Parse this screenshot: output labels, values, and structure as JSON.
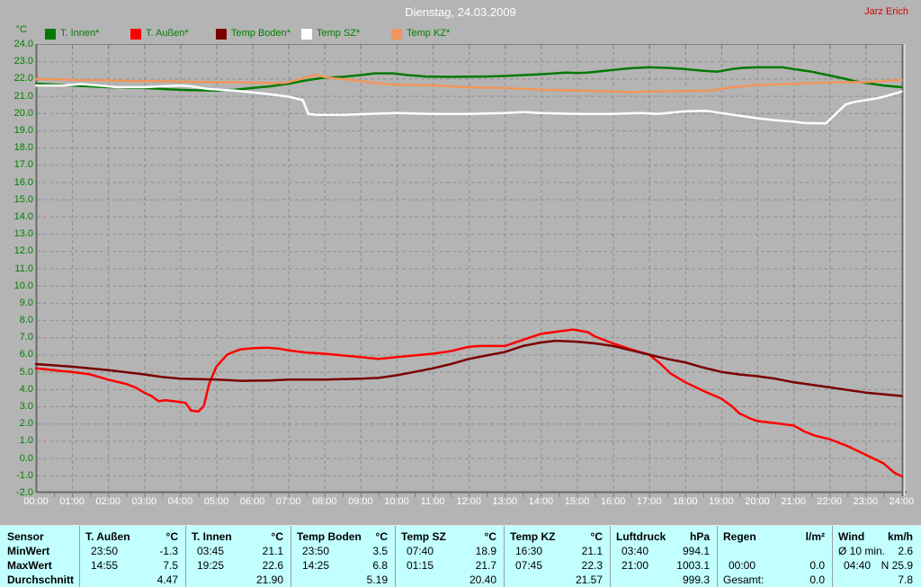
{
  "header": {
    "title": "Dienstag, 24.03.2009",
    "author": "Jarz Erich"
  },
  "colors": {
    "background": "#b4b4b4",
    "grid": "#8f8f8f",
    "axis_dark": "#6a6a6a",
    "axis_light": "#e0e0e0",
    "axis_text_green": "#008000",
    "axis_text_white": "#ffffff",
    "author_red": "#dd0000",
    "table_background": "#c2ffff",
    "t_innen": "#007a00",
    "t_aussen": "#ff0000",
    "temp_boden": "#7a0000",
    "temp_sz": "#ffffff",
    "temp_kz": "#f2955c"
  },
  "chart_data": {
    "type": "line",
    "title": "Dienstag, 24.03.2009",
    "xlabel": "",
    "ylabel": "°C",
    "ylim": [
      -2,
      24
    ],
    "y_tick_step": 1,
    "grid": "dashed",
    "legend_position": "top",
    "x_ticks": [
      "00:00",
      "01:00",
      "02:00",
      "03:00",
      "04:00",
      "05:00",
      "06:00",
      "07:00",
      "08:00",
      "09:00",
      "10:00",
      "11:00",
      "12:00",
      "13:00",
      "14:00",
      "15:00",
      "16:00",
      "17:00",
      "18:00",
      "19:00",
      "20:00",
      "21:00",
      "22:00",
      "23:00",
      "24:00"
    ],
    "series": [
      {
        "key": "t-innen",
        "name": "T. Innen*",
        "color": "#007a00",
        "width": 2.5,
        "points": [
          [
            0,
            21.7
          ],
          [
            0.5,
            21.65
          ],
          [
            1,
            21.6
          ],
          [
            1.5,
            21.55
          ],
          [
            2,
            21.5
          ],
          [
            2.5,
            21.47
          ],
          [
            3,
            21.45
          ],
          [
            3.5,
            21.4
          ],
          [
            3.75,
            21.37
          ],
          [
            4.25,
            21.33
          ],
          [
            5,
            21.3
          ],
          [
            5.5,
            21.35
          ],
          [
            6,
            21.45
          ],
          [
            6.5,
            21.55
          ],
          [
            7,
            21.7
          ],
          [
            7.5,
            21.9
          ],
          [
            8,
            22.05
          ],
          [
            8.5,
            22.1
          ],
          [
            9,
            22.2
          ],
          [
            9.4,
            22.3
          ],
          [
            9.9,
            22.3
          ],
          [
            10.3,
            22.2
          ],
          [
            10.8,
            22.12
          ],
          [
            11.5,
            22.1
          ],
          [
            12.5,
            22.12
          ],
          [
            13,
            22.15
          ],
          [
            14,
            22.25
          ],
          [
            14.7,
            22.35
          ],
          [
            15,
            22.32
          ],
          [
            15.3,
            22.35
          ],
          [
            16,
            22.5
          ],
          [
            16.5,
            22.6
          ],
          [
            17,
            22.65
          ],
          [
            17.5,
            22.62
          ],
          [
            18,
            22.55
          ],
          [
            18.5,
            22.45
          ],
          [
            18.9,
            22.4
          ],
          [
            19.3,
            22.55
          ],
          [
            19.6,
            22.62
          ],
          [
            20,
            22.65
          ],
          [
            20.7,
            22.65
          ],
          [
            21,
            22.55
          ],
          [
            21.5,
            22.4
          ],
          [
            22,
            22.18
          ],
          [
            22.4,
            22.0
          ],
          [
            22.7,
            21.85
          ],
          [
            23,
            21.75
          ],
          [
            23.5,
            21.6
          ],
          [
            24,
            21.5
          ]
        ]
      },
      {
        "key": "t-aussen",
        "name": "T. Außen*",
        "color": "#ff0000",
        "width": 2.5,
        "points": [
          [
            0,
            5.2
          ],
          [
            0.4,
            5.12
          ],
          [
            0.7,
            5.05
          ],
          [
            1,
            5.0
          ],
          [
            1.5,
            4.85
          ],
          [
            2,
            4.55
          ],
          [
            2.5,
            4.3
          ],
          [
            2.75,
            4.1
          ],
          [
            3,
            3.8
          ],
          [
            3.2,
            3.6
          ],
          [
            3.4,
            3.3
          ],
          [
            3.6,
            3.35
          ],
          [
            3.8,
            3.3
          ],
          [
            4,
            3.25
          ],
          [
            4.15,
            3.2
          ],
          [
            4.3,
            2.75
          ],
          [
            4.5,
            2.7
          ],
          [
            4.65,
            3.0
          ],
          [
            4.8,
            4.3
          ],
          [
            5,
            5.3
          ],
          [
            5.3,
            6.0
          ],
          [
            5.65,
            6.3
          ],
          [
            6,
            6.37
          ],
          [
            6.4,
            6.4
          ],
          [
            6.7,
            6.35
          ],
          [
            7,
            6.25
          ],
          [
            7.5,
            6.12
          ],
          [
            8,
            6.05
          ],
          [
            8.5,
            5.95
          ],
          [
            9,
            5.85
          ],
          [
            9.5,
            5.75
          ],
          [
            10,
            5.85
          ],
          [
            10.5,
            5.95
          ],
          [
            11,
            6.05
          ],
          [
            11.5,
            6.2
          ],
          [
            12,
            6.45
          ],
          [
            12.3,
            6.5
          ],
          [
            13,
            6.5
          ],
          [
            13.5,
            6.85
          ],
          [
            14,
            7.2
          ],
          [
            14.5,
            7.35
          ],
          [
            14.9,
            7.45
          ],
          [
            15.3,
            7.3
          ],
          [
            15.5,
            7.05
          ],
          [
            16,
            6.65
          ],
          [
            16.5,
            6.3
          ],
          [
            17,
            6.0
          ],
          [
            17.3,
            5.5
          ],
          [
            17.6,
            4.9
          ],
          [
            18,
            4.4
          ],
          [
            18.5,
            3.9
          ],
          [
            19,
            3.45
          ],
          [
            19.3,
            3.0
          ],
          [
            19.5,
            2.6
          ],
          [
            19.8,
            2.3
          ],
          [
            20,
            2.15
          ],
          [
            20.4,
            2.05
          ],
          [
            21,
            1.9
          ],
          [
            21.3,
            1.55
          ],
          [
            21.6,
            1.3
          ],
          [
            22,
            1.1
          ],
          [
            22.5,
            0.7
          ],
          [
            23,
            0.2
          ],
          [
            23.5,
            -0.3
          ],
          [
            23.8,
            -0.85
          ],
          [
            24,
            -1.05
          ]
        ]
      },
      {
        "key": "temp-boden",
        "name": "Temp Boden*",
        "color": "#7a0000",
        "width": 2.5,
        "points": [
          [
            0,
            5.45
          ],
          [
            1,
            5.3
          ],
          [
            2,
            5.1
          ],
          [
            3,
            4.85
          ],
          [
            3.5,
            4.7
          ],
          [
            4,
            4.6
          ],
          [
            5,
            4.55
          ],
          [
            5.7,
            4.48
          ],
          [
            6.5,
            4.5
          ],
          [
            7,
            4.55
          ],
          [
            8,
            4.55
          ],
          [
            9,
            4.6
          ],
          [
            9.5,
            4.65
          ],
          [
            10,
            4.8
          ],
          [
            10.5,
            5.0
          ],
          [
            11,
            5.2
          ],
          [
            11.5,
            5.45
          ],
          [
            12,
            5.75
          ],
          [
            12.5,
            5.95
          ],
          [
            13,
            6.15
          ],
          [
            13.5,
            6.5
          ],
          [
            14,
            6.7
          ],
          [
            14.4,
            6.8
          ],
          [
            15,
            6.75
          ],
          [
            15.5,
            6.65
          ],
          [
            16,
            6.5
          ],
          [
            16.5,
            6.25
          ],
          [
            17,
            6.0
          ],
          [
            17.5,
            5.75
          ],
          [
            18,
            5.55
          ],
          [
            18.5,
            5.25
          ],
          [
            19,
            5.0
          ],
          [
            19.5,
            4.85
          ],
          [
            20,
            4.75
          ],
          [
            20.5,
            4.6
          ],
          [
            21,
            4.4
          ],
          [
            21.5,
            4.25
          ],
          [
            22,
            4.1
          ],
          [
            22.5,
            3.95
          ],
          [
            23,
            3.8
          ],
          [
            23.5,
            3.7
          ],
          [
            24,
            3.6
          ]
        ]
      },
      {
        "key": "temp-sz",
        "name": "Temp SZ*",
        "color": "#ffffff",
        "width": 2.5,
        "points": [
          [
            0,
            21.6
          ],
          [
            0.75,
            21.6
          ],
          [
            1.25,
            21.68
          ],
          [
            1.75,
            21.6
          ],
          [
            2.25,
            21.5
          ],
          [
            3,
            21.5
          ],
          [
            3.5,
            21.55
          ],
          [
            4,
            21.6
          ],
          [
            4.3,
            21.55
          ],
          [
            4.75,
            21.4
          ],
          [
            5.5,
            21.3
          ],
          [
            6.25,
            21.15
          ],
          [
            7,
            20.95
          ],
          [
            7.4,
            20.75
          ],
          [
            7.55,
            19.95
          ],
          [
            7.8,
            19.9
          ],
          [
            8.5,
            19.9
          ],
          [
            9.2,
            19.95
          ],
          [
            10,
            20.0
          ],
          [
            11,
            19.95
          ],
          [
            12,
            19.95
          ],
          [
            13,
            20.0
          ],
          [
            13.5,
            20.05
          ],
          [
            14,
            20.0
          ],
          [
            15,
            19.95
          ],
          [
            16,
            19.95
          ],
          [
            16.75,
            20.0
          ],
          [
            17.25,
            19.95
          ],
          [
            18,
            20.1
          ],
          [
            18.6,
            20.13
          ],
          [
            19,
            20.0
          ],
          [
            19.5,
            19.85
          ],
          [
            20,
            19.7
          ],
          [
            20.5,
            19.58
          ],
          [
            21,
            19.5
          ],
          [
            21.3,
            19.42
          ],
          [
            21.9,
            19.4
          ],
          [
            22.05,
            19.7
          ],
          [
            22.2,
            20.0
          ],
          [
            22.45,
            20.5
          ],
          [
            22.7,
            20.65
          ],
          [
            23,
            20.75
          ],
          [
            23.3,
            20.85
          ],
          [
            23.6,
            21.0
          ],
          [
            24,
            21.25
          ]
        ]
      },
      {
        "key": "temp-kz",
        "name": "Temp KZ*",
        "color": "#f2955c",
        "width": 2.5,
        "points": [
          [
            0,
            21.97
          ],
          [
            0.7,
            21.95
          ],
          [
            1.2,
            21.9
          ],
          [
            2,
            21.9
          ],
          [
            2.6,
            21.85
          ],
          [
            3.5,
            21.85
          ],
          [
            4.5,
            21.8
          ],
          [
            5.5,
            21.78
          ],
          [
            6.4,
            21.75
          ],
          [
            6.9,
            21.75
          ],
          [
            7.3,
            21.95
          ],
          [
            7.6,
            22.15
          ],
          [
            7.8,
            22.2
          ],
          [
            8,
            22.1
          ],
          [
            8.3,
            22.0
          ],
          [
            8.6,
            21.95
          ],
          [
            9,
            21.85
          ],
          [
            9.6,
            21.7
          ],
          [
            10,
            21.65
          ],
          [
            11,
            21.6
          ],
          [
            12,
            21.5
          ],
          [
            13,
            21.45
          ],
          [
            14,
            21.35
          ],
          [
            15,
            21.3
          ],
          [
            16,
            21.25
          ],
          [
            16.5,
            21.2
          ],
          [
            17,
            21.25
          ],
          [
            18,
            21.28
          ],
          [
            18.7,
            21.3
          ],
          [
            19.3,
            21.5
          ],
          [
            20,
            21.63
          ],
          [
            21,
            21.7
          ],
          [
            22,
            21.77
          ],
          [
            23,
            21.8
          ],
          [
            23.5,
            21.85
          ],
          [
            24,
            21.92
          ]
        ]
      }
    ]
  },
  "table": {
    "row_labels": [
      "Sensor",
      "MinWert",
      "MaxWert",
      "Durchschnitt"
    ],
    "columns": [
      {
        "name": "T. Außen",
        "unit": "°C",
        "rows": [
          [
            "23:50",
            "-1.3"
          ],
          [
            "14:55",
            "7.5"
          ],
          [
            "",
            "4.47"
          ]
        ]
      },
      {
        "name": "T. Innen",
        "unit": "°C",
        "rows": [
          [
            "03:45",
            "21.1"
          ],
          [
            "19:25",
            "22.6"
          ],
          [
            "",
            "21.90"
          ]
        ]
      },
      {
        "name": "Temp Boden",
        "unit": "°C",
        "rows": [
          [
            "23:50",
            "3.5"
          ],
          [
            "14:25",
            "6.8"
          ],
          [
            "",
            "5.19"
          ]
        ]
      },
      {
        "name": "Temp SZ",
        "unit": "°C",
        "rows": [
          [
            "07:40",
            "18.9"
          ],
          [
            "01:15",
            "21.7"
          ],
          [
            "",
            "20.40"
          ]
        ]
      },
      {
        "name": "Temp KZ",
        "unit": "°C",
        "rows": [
          [
            "16:30",
            "21.1"
          ],
          [
            "07:45",
            "22.3"
          ],
          [
            "",
            "21.57"
          ]
        ]
      },
      {
        "name": "Luftdruck",
        "unit": "hPa",
        "rows": [
          [
            "03:40",
            "994.1"
          ],
          [
            "21:00",
            "1003.1"
          ],
          [
            "",
            "999.3"
          ]
        ]
      },
      {
        "name": "Regen",
        "unit": "l/m²",
        "rows": [
          [
            "",
            ""
          ],
          [
            "00:00",
            "0.0"
          ],
          [
            "Gesamt:",
            "0.0"
          ]
        ]
      },
      {
        "name": "Wind",
        "unit": "km/h",
        "rows": [
          [
            "Ø 10 min.",
            "2.6"
          ],
          [
            "04:40",
            "N 25.9"
          ],
          [
            "",
            "7.8"
          ]
        ]
      }
    ]
  }
}
